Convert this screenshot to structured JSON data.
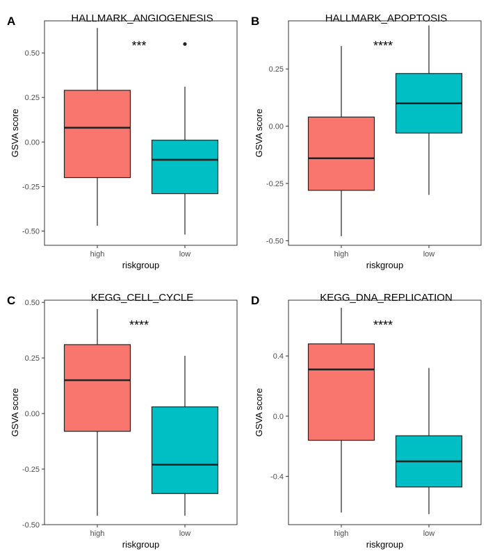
{
  "colors": {
    "high": "#f8766d",
    "low": "#00bfc4",
    "frame": "#333333",
    "median": "#222222"
  },
  "chart_data": [
    {
      "type": "box",
      "panel_letter": "A",
      "title": "HALLMARK_ANGIOGENESIS",
      "xlabel": "riskgroup",
      "ylabel": "GSVA score",
      "significance": "***",
      "ylim": [
        -0.58,
        0.68
      ],
      "yticks": [
        0.5,
        0.25,
        0.0,
        -0.25,
        -0.5
      ],
      "ytick_labels": [
        "0.50",
        "0.25",
        "0.00",
        "-0.25",
        "-0.50"
      ],
      "categories": [
        "high",
        "low"
      ],
      "boxes": [
        {
          "group": "high",
          "min": -0.47,
          "q1": -0.2,
          "median": 0.08,
          "q3": 0.29,
          "max": 0.64,
          "outliers": []
        },
        {
          "group": "low",
          "min": -0.52,
          "q1": -0.29,
          "median": -0.1,
          "q3": 0.01,
          "max": 0.31,
          "outliers": [
            0.55
          ]
        }
      ]
    },
    {
      "type": "box",
      "panel_letter": "B",
      "title": "HALLMARK_APOPTOSIS",
      "xlabel": "riskgroup",
      "ylabel": "GSVA score",
      "significance": "****",
      "ylim": [
        -0.52,
        0.46
      ],
      "yticks": [
        0.25,
        0.0,
        -0.25,
        -0.5
      ],
      "ytick_labels": [
        "0.25",
        "0.00",
        "-0.25",
        "-0.50"
      ],
      "categories": [
        "high",
        "low"
      ],
      "boxes": [
        {
          "group": "high",
          "min": -0.48,
          "q1": -0.28,
          "median": -0.14,
          "q3": 0.04,
          "max": 0.35,
          "outliers": []
        },
        {
          "group": "low",
          "min": -0.3,
          "q1": -0.03,
          "median": 0.1,
          "q3": 0.23,
          "max": 0.44,
          "outliers": []
        }
      ]
    },
    {
      "type": "box",
      "panel_letter": "C",
      "title": "KEGG_CELL_CYCLE",
      "xlabel": "riskgroup",
      "ylabel": "GSVA score",
      "significance": "****",
      "ylim": [
        -0.5,
        0.51
      ],
      "yticks": [
        0.5,
        0.25,
        0.0,
        -0.25,
        -0.5
      ],
      "ytick_labels": [
        "0.50",
        "0.25",
        "0.00",
        "-0.25",
        "-0.50"
      ],
      "categories": [
        "high",
        "low"
      ],
      "boxes": [
        {
          "group": "high",
          "min": -0.46,
          "q1": -0.08,
          "median": 0.15,
          "q3": 0.31,
          "max": 0.47,
          "outliers": []
        },
        {
          "group": "low",
          "min": -0.46,
          "q1": -0.36,
          "median": -0.23,
          "q3": 0.03,
          "max": 0.26,
          "outliers": []
        }
      ]
    },
    {
      "type": "box",
      "panel_letter": "D",
      "title": "KEGG_DNA_REPLICATION",
      "xlabel": "riskgroup",
      "ylabel": "GSVA score",
      "significance": "****",
      "ylim": [
        -0.72,
        0.77
      ],
      "yticks": [
        0.4,
        0.0,
        -0.4
      ],
      "ytick_labels": [
        "0.4",
        "0.0",
        "-0.4"
      ],
      "categories": [
        "high",
        "low"
      ],
      "boxes": [
        {
          "group": "high",
          "min": -0.64,
          "q1": -0.16,
          "median": 0.31,
          "q3": 0.48,
          "max": 0.72,
          "outliers": []
        },
        {
          "group": "low",
          "min": -0.65,
          "q1": -0.47,
          "median": -0.3,
          "q3": -0.13,
          "max": 0.32,
          "outliers": []
        }
      ]
    }
  ]
}
